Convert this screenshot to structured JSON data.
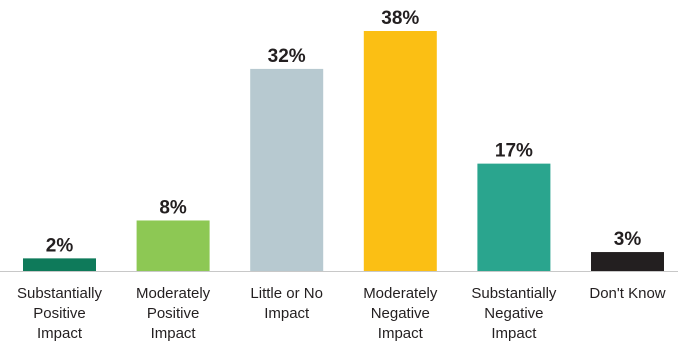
{
  "chart_data": {
    "type": "bar",
    "categories": [
      [
        "Substantially",
        "Positive",
        "Impact"
      ],
      [
        "Moderately",
        "Positive",
        "Impact"
      ],
      [
        "Little or No",
        "Impact"
      ],
      [
        "Moderately",
        "Negative",
        "Impact"
      ],
      [
        "Substantially",
        "Negative",
        "Impact"
      ],
      [
        "Don't Know"
      ]
    ],
    "values": [
      2,
      8,
      32,
      38,
      17,
      3
    ],
    "value_labels": [
      "2%",
      "8%",
      "32%",
      "38%",
      "17%",
      "3%"
    ],
    "colors": [
      "#0e7a5a",
      "#8dc854",
      "#b7c9d0",
      "#fbbf14",
      "#2aa58e",
      "#231f20"
    ],
    "baseline_color": "#c8c8c8",
    "ylim": [
      0,
      38
    ],
    "grid": false,
    "legend": "none",
    "title": "",
    "xlabel": "",
    "ylabel": ""
  }
}
